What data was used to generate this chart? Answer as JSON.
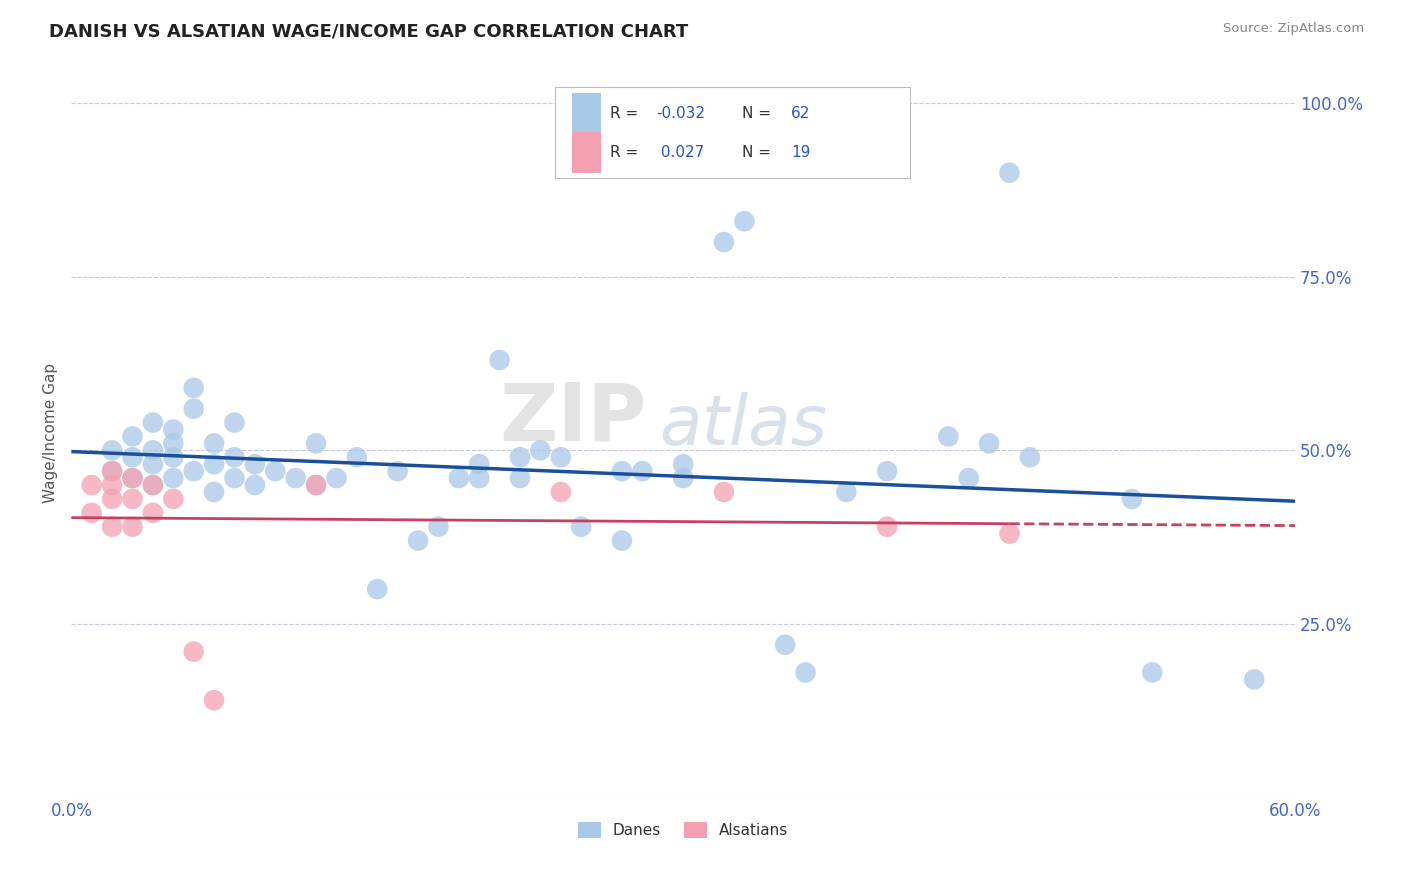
{
  "title": "DANISH VS ALSATIAN WAGE/INCOME GAP CORRELATION CHART",
  "source": "Source: ZipAtlas.com",
  "ylabel": "Wage/Income Gap",
  "xlim": [
    0.0,
    0.6
  ],
  "ylim": [
    0.0,
    1.05
  ],
  "xticks": [
    0.0,
    0.1,
    0.2,
    0.3,
    0.4,
    0.5,
    0.6
  ],
  "xticklabels": [
    "0.0%",
    "",
    "",
    "",
    "",
    "",
    "60.0%"
  ],
  "yticks": [
    0.0,
    0.25,
    0.5,
    0.75,
    1.0
  ],
  "yticklabels": [
    "",
    "25.0%",
    "50.0%",
    "75.0%",
    "100.0%"
  ],
  "danes_color": "#a8c8e8",
  "alsatians_color": "#f4a0b0",
  "danes_line_color": "#1a4f9c",
  "alsatians_line_color": "#c84060",
  "R_danes": -0.032,
  "N_danes": 62,
  "R_alsatians": 0.027,
  "N_alsatians": 19,
  "watermark_zip": "ZIP",
  "watermark_atlas": "atlas",
  "background_color": "#ffffff",
  "grid_color": "#c8c8d8",
  "title_color": "#222222",
  "source_color": "#888888",
  "tick_color": "#4466cc",
  "danes_scatter": [
    [
      0.02,
      0.47
    ],
    [
      0.02,
      0.5
    ],
    [
      0.03,
      0.46
    ],
    [
      0.03,
      0.49
    ],
    [
      0.03,
      0.52
    ],
    [
      0.04,
      0.45
    ],
    [
      0.04,
      0.48
    ],
    [
      0.04,
      0.5
    ],
    [
      0.04,
      0.54
    ],
    [
      0.05,
      0.46
    ],
    [
      0.05,
      0.49
    ],
    [
      0.05,
      0.51
    ],
    [
      0.05,
      0.53
    ],
    [
      0.06,
      0.47
    ],
    [
      0.06,
      0.56
    ],
    [
      0.06,
      0.59
    ],
    [
      0.07,
      0.44
    ],
    [
      0.07,
      0.48
    ],
    [
      0.07,
      0.51
    ],
    [
      0.08,
      0.46
    ],
    [
      0.08,
      0.49
    ],
    [
      0.08,
      0.54
    ],
    [
      0.09,
      0.45
    ],
    [
      0.09,
      0.48
    ],
    [
      0.1,
      0.47
    ],
    [
      0.11,
      0.46
    ],
    [
      0.12,
      0.45
    ],
    [
      0.12,
      0.51
    ],
    [
      0.13,
      0.46
    ],
    [
      0.14,
      0.49
    ],
    [
      0.15,
      0.3
    ],
    [
      0.16,
      0.47
    ],
    [
      0.17,
      0.37
    ],
    [
      0.18,
      0.39
    ],
    [
      0.19,
      0.46
    ],
    [
      0.2,
      0.46
    ],
    [
      0.2,
      0.48
    ],
    [
      0.21,
      0.63
    ],
    [
      0.22,
      0.46
    ],
    [
      0.22,
      0.49
    ],
    [
      0.23,
      0.5
    ],
    [
      0.24,
      0.49
    ],
    [
      0.25,
      0.39
    ],
    [
      0.27,
      0.37
    ],
    [
      0.27,
      0.47
    ],
    [
      0.28,
      0.47
    ],
    [
      0.3,
      0.46
    ],
    [
      0.3,
      0.48
    ],
    [
      0.32,
      0.8
    ],
    [
      0.33,
      0.83
    ],
    [
      0.35,
      0.22
    ],
    [
      0.36,
      0.18
    ],
    [
      0.38,
      0.44
    ],
    [
      0.4,
      0.47
    ],
    [
      0.43,
      0.52
    ],
    [
      0.44,
      0.46
    ],
    [
      0.45,
      0.51
    ],
    [
      0.46,
      0.9
    ],
    [
      0.47,
      0.49
    ],
    [
      0.52,
      0.43
    ],
    [
      0.53,
      0.18
    ],
    [
      0.58,
      0.17
    ]
  ],
  "alsatians_scatter": [
    [
      0.01,
      0.41
    ],
    [
      0.01,
      0.45
    ],
    [
      0.02,
      0.39
    ],
    [
      0.02,
      0.43
    ],
    [
      0.02,
      0.45
    ],
    [
      0.02,
      0.47
    ],
    [
      0.03,
      0.39
    ],
    [
      0.03,
      0.43
    ],
    [
      0.03,
      0.46
    ],
    [
      0.04,
      0.41
    ],
    [
      0.04,
      0.45
    ],
    [
      0.05,
      0.43
    ],
    [
      0.06,
      0.21
    ],
    [
      0.07,
      0.14
    ],
    [
      0.12,
      0.45
    ],
    [
      0.24,
      0.44
    ],
    [
      0.32,
      0.44
    ],
    [
      0.4,
      0.39
    ],
    [
      0.46,
      0.38
    ]
  ]
}
